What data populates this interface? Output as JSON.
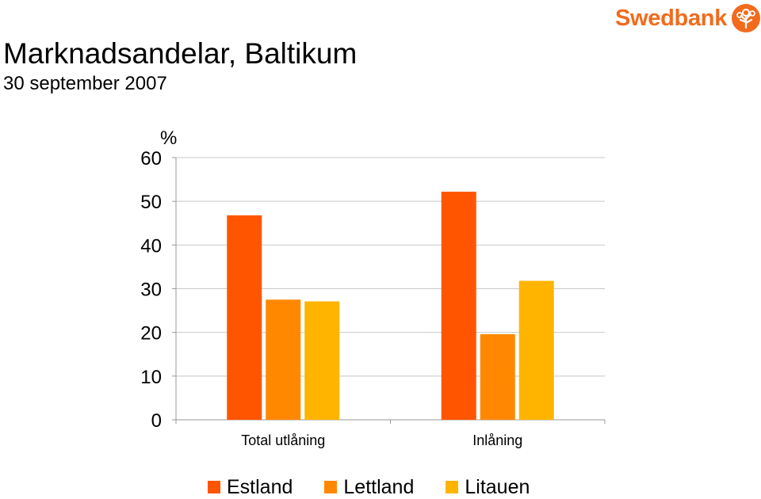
{
  "header": {
    "title": "Marknadsandelar, Baltikum",
    "subtitle": "30 september 2007"
  },
  "logo": {
    "text": "Swedbank",
    "icon": "oak-tree-icon",
    "color": "#f26b1d"
  },
  "chart_data": {
    "type": "bar",
    "title": "",
    "xlabel": "",
    "ylabel": "%",
    "ylim": [
      0,
      60
    ],
    "yticks": [
      0,
      10,
      20,
      30,
      40,
      50,
      60
    ],
    "grid": true,
    "legend_position": "bottom",
    "categories": [
      "Total utlåning",
      "Inlåning"
    ],
    "series": [
      {
        "name": "Estland",
        "color": "#ff5500",
        "values": [
          46.8,
          52.2
        ]
      },
      {
        "name": "Lettland",
        "color": "#ff8800",
        "values": [
          27.5,
          19.6
        ]
      },
      {
        "name": "Litauen",
        "color": "#ffb400",
        "values": [
          27.1,
          31.8
        ]
      }
    ]
  }
}
